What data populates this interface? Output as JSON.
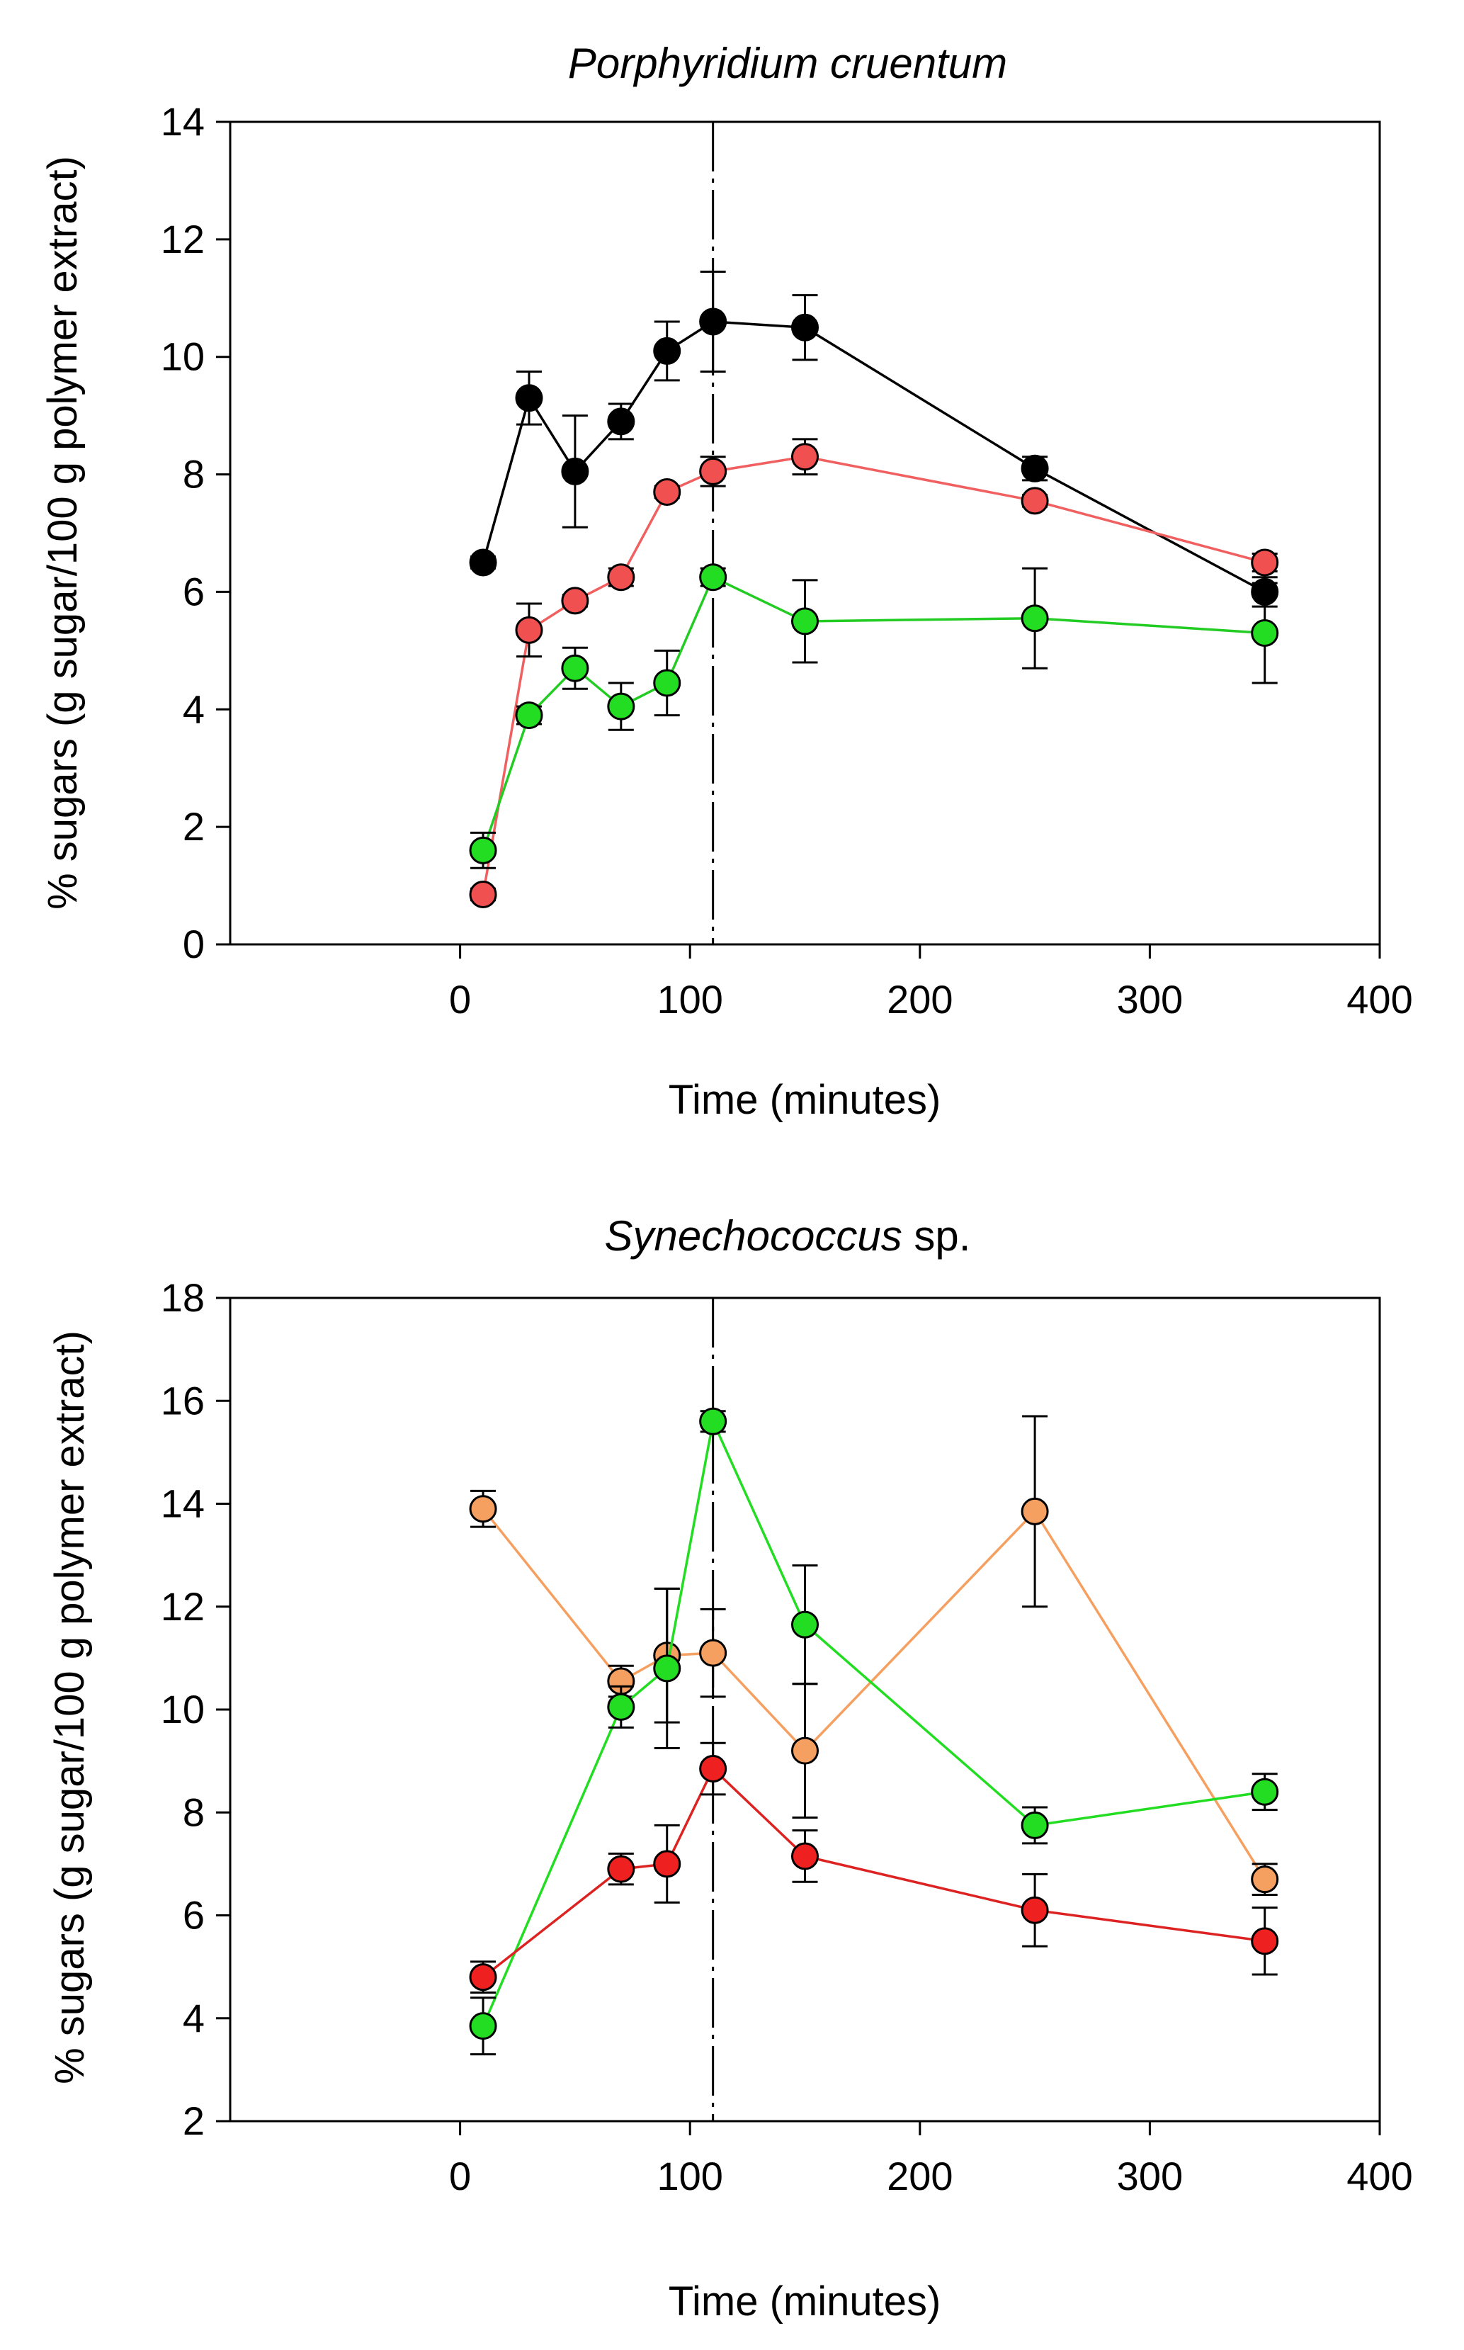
{
  "chart_data": [
    {
      "type": "line",
      "title": {
        "italic": "Porphyridium cruentum",
        "plain": ""
      },
      "xlabel": "Time (minutes)",
      "ylabel": "% sugars (g sugar/100 g polymer extract)",
      "xlim": [
        -100,
        400
      ],
      "ylim": [
        0,
        14
      ],
      "xticks": [
        0,
        100,
        200,
        300,
        400
      ],
      "yticks": [
        0,
        2,
        4,
        6,
        8,
        10,
        12,
        14
      ],
      "grid": false,
      "legend": "none",
      "vline_x": 110,
      "series": [
        {
          "color": "#000000",
          "line_color": "#000000",
          "x": [
            10,
            30,
            50,
            70,
            90,
            110,
            150,
            250,
            350
          ],
          "y": [
            6.5,
            9.3,
            8.05,
            8.9,
            10.1,
            10.6,
            10.5,
            8.1,
            6.0
          ],
          "err": [
            0.1,
            0.45,
            0.95,
            0.3,
            0.5,
            0.85,
            0.55,
            0.2,
            0.25
          ]
        },
        {
          "color": "#f05050",
          "line_color": "#f06060",
          "x": [
            10,
            30,
            50,
            70,
            90,
            110,
            150,
            250,
            350
          ],
          "y": [
            0.85,
            5.35,
            5.85,
            6.25,
            7.7,
            8.05,
            8.3,
            7.55,
            6.5
          ],
          "err": [
            0.1,
            0.45,
            0.1,
            0.15,
            0.1,
            0.25,
            0.3,
            0.1,
            0.15
          ]
        },
        {
          "color": "#22dd22",
          "line_color": "#22cc22",
          "x": [
            10,
            30,
            50,
            70,
            90,
            110,
            150,
            250,
            350
          ],
          "y": [
            1.6,
            3.9,
            4.7,
            4.05,
            4.45,
            6.25,
            5.5,
            5.55,
            5.3
          ],
          "err": [
            0.3,
            0.15,
            0.35,
            0.4,
            0.55,
            0.15,
            0.7,
            0.85,
            0.85
          ]
        }
      ]
    },
    {
      "type": "line",
      "title": {
        "italic": "Synechococcus",
        "plain": " sp."
      },
      "xlabel": "Time (minutes)",
      "ylabel": "% sugars (g sugar/100 g polymer extract)",
      "xlim": [
        -100,
        400
      ],
      "ylim": [
        2,
        18
      ],
      "xticks": [
        0,
        100,
        200,
        300,
        400
      ],
      "yticks": [
        2,
        4,
        6,
        8,
        10,
        12,
        14,
        16,
        18
      ],
      "grid": false,
      "legend": "none",
      "vline_x": 110,
      "series": [
        {
          "color": "#f5a060",
          "line_color": "#f5a060",
          "x": [
            10,
            70,
            90,
            110,
            150,
            250,
            350
          ],
          "y": [
            13.9,
            10.55,
            11.05,
            11.1,
            9.2,
            13.85,
            6.7
          ],
          "err": [
            0.35,
            0.3,
            1.3,
            0.85,
            1.3,
            1.85,
            0.3
          ]
        },
        {
          "color": "#22dd22",
          "line_color": "#22dd22",
          "x": [
            10,
            70,
            90,
            110,
            150,
            250,
            350
          ],
          "y": [
            3.85,
            10.05,
            10.8,
            15.6,
            11.65,
            7.75,
            8.4
          ],
          "err": [
            0.55,
            0.4,
            1.55,
            0.2,
            1.15,
            0.35,
            0.35
          ]
        },
        {
          "color": "#ee2020",
          "line_color": "#dd2222",
          "x": [
            10,
            70,
            90,
            110,
            150,
            250,
            350
          ],
          "y": [
            4.8,
            6.9,
            7.0,
            8.85,
            7.15,
            6.1,
            5.5
          ],
          "err": [
            0.3,
            0.3,
            0.75,
            0.5,
            0.5,
            0.7,
            0.65
          ]
        }
      ]
    }
  ]
}
